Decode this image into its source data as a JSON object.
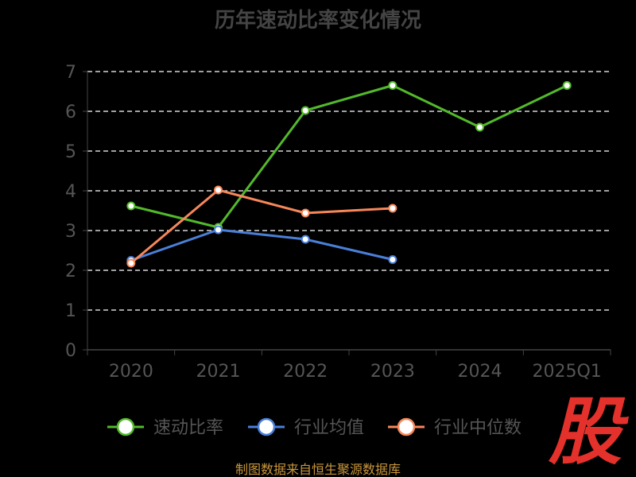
{
  "chart_data": {
    "type": "line",
    "title": "历年速动比率变化情况",
    "categories": [
      "2020",
      "2021",
      "2022",
      "2023",
      "2024",
      "2025Q1"
    ],
    "ylim": [
      0,
      7
    ],
    "yticks": [
      0,
      1,
      2,
      3,
      4,
      5,
      6,
      7
    ],
    "grid": true,
    "legend_position": "bottom",
    "series": [
      {
        "name": "速动比率",
        "color": "#52b92b",
        "values": [
          3.62,
          3.08,
          6.02,
          6.65,
          5.6,
          6.65
        ]
      },
      {
        "name": "行业均值",
        "color": "#4a7fd8",
        "values": [
          2.25,
          3.02,
          2.78,
          2.27,
          null,
          null
        ]
      },
      {
        "name": "行业中位数",
        "color": "#f7875a",
        "values": [
          2.18,
          4.02,
          3.44,
          3.56,
          null,
          null
        ]
      }
    ]
  },
  "source_text": "制图数据来自恒生聚源数据库",
  "logo_text": "股"
}
